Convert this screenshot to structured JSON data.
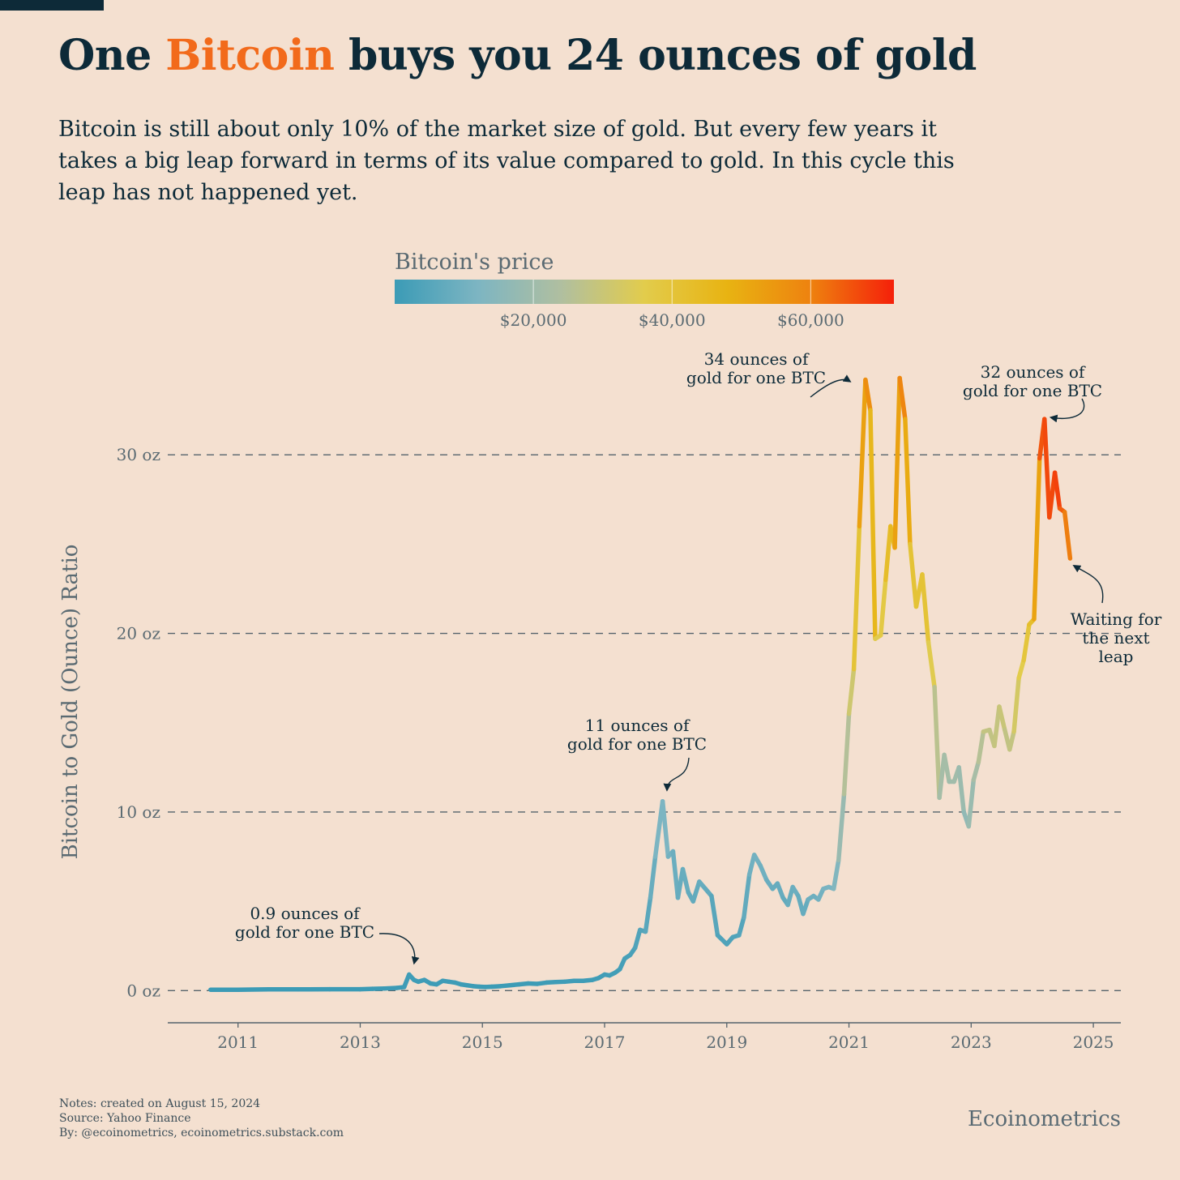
{
  "header": {
    "title_pre": "One ",
    "title_highlight": "Bitcoin",
    "title_post": " buys you 24 ounces of gold",
    "subtitle": "Bitcoin is still about only 10% of the market size of gold. But every few years it takes a big leap forward in terms of its value compared to gold. In this cycle this leap has not happened yet."
  },
  "footer": {
    "notes": "Notes: created on August 15, 2024",
    "source": "Source: Yahoo Finance",
    "by": "By: @ecoinometrics, ecoinometrics.substack.com",
    "brand": "Ecoinometrics"
  },
  "colors": {
    "background": "#f4e0d0",
    "text": "#0d2a38",
    "title_highlight": "#f26a1b",
    "axis_text": "#5a6a72",
    "gradient": [
      "#3b9bb6",
      "#7db5c2",
      "#b0bfa0",
      "#e2cc4c",
      "#e8b312",
      "#ee820f",
      "#f5200a"
    ]
  },
  "chart_data": {
    "type": "line",
    "ylabel": "Bitcoin to Gold (Ounce) Ratio",
    "ylim": [
      -1.8,
      35.5
    ],
    "xlim": [
      2009.85,
      2025.45
    ],
    "yticks": [
      0,
      10,
      20,
      30
    ],
    "ytick_labels": [
      "0 oz",
      "10 oz",
      "20 oz",
      "30 oz"
    ],
    "xticks": [
      2011,
      2013,
      2015,
      2017,
      2019,
      2021,
      2023,
      2025
    ],
    "xtick_labels": [
      "2011",
      "2013",
      "2015",
      "2017",
      "2019",
      "2021",
      "2023",
      "2025"
    ],
    "grid": "horizontal dashed",
    "colorbar": {
      "title": "Bitcoin's price",
      "range": [
        0,
        72000
      ],
      "ticks": [
        20000,
        40000,
        60000
      ],
      "tick_labels": [
        "$20,000",
        "$40,000",
        "$60,000"
      ]
    },
    "annotations": [
      {
        "lines": [
          "0.9 ounces of",
          "gold for one BTC"
        ],
        "x": 2013.8,
        "y": 0.9
      },
      {
        "lines": [
          "11 ounces of",
          "gold for one BTC"
        ],
        "x": 2017.95,
        "y": 10.6
      },
      {
        "lines": [
          "34 ounces of",
          "gold for one BTC"
        ],
        "x": 2021.15,
        "y": 34.2
      },
      {
        "lines": [
          "32 ounces of",
          "gold for one BTC"
        ],
        "x": 2024.2,
        "y": 32.0
      },
      {
        "lines": [
          "Waiting for",
          "the next",
          "leap"
        ],
        "x": 2024.55,
        "y": 24.2
      }
    ],
    "series": [
      {
        "x": [
          2010.55,
          2011.0,
          2011.5,
          2012.0,
          2012.5,
          2013.0,
          2013.2,
          2013.4,
          2013.6,
          2013.72,
          2013.8,
          2013.88,
          2013.95,
          2014.05,
          2014.15,
          2014.25,
          2014.35,
          2014.45,
          2014.55,
          2014.65,
          2014.75,
          2014.85,
          2014.95,
          2015.05,
          2015.15,
          2015.3,
          2015.45,
          2015.6,
          2015.75,
          2015.9,
          2016.05,
          2016.2,
          2016.35,
          2016.5,
          2016.65,
          2016.8,
          2016.9,
          2017.0,
          2017.08,
          2017.17,
          2017.25,
          2017.33,
          2017.42,
          2017.5,
          2017.58,
          2017.67,
          2017.75,
          2017.83,
          2017.95,
          2018.04,
          2018.12,
          2018.2,
          2018.28,
          2018.37,
          2018.45,
          2018.55,
          2018.65,
          2018.75,
          2018.85,
          2019.0,
          2019.1,
          2019.2,
          2019.28,
          2019.37,
          2019.45,
          2019.55,
          2019.65,
          2019.75,
          2019.83,
          2019.92,
          2020.0,
          2020.08,
          2020.17,
          2020.25,
          2020.33,
          2020.42,
          2020.5,
          2020.58,
          2020.67,
          2020.75,
          2020.83,
          2020.92,
          2021.0,
          2021.08,
          2021.17,
          2021.27,
          2021.35,
          2021.43,
          2021.52,
          2021.6,
          2021.68,
          2021.75,
          2021.83,
          2021.92,
          2022.0,
          2022.1,
          2022.2,
          2022.3,
          2022.4,
          2022.48,
          2022.56,
          2022.64,
          2022.72,
          2022.8,
          2022.88,
          2022.96,
          2023.04,
          2023.12,
          2023.2,
          2023.3,
          2023.38,
          2023.46,
          2023.55,
          2023.63,
          2023.7,
          2023.78,
          2023.86,
          2023.95,
          2024.03,
          2024.12,
          2024.2,
          2024.28,
          2024.37,
          2024.45,
          2024.53,
          2024.62
        ],
        "y": [
          0.05,
          0.05,
          0.07,
          0.07,
          0.08,
          0.08,
          0.1,
          0.12,
          0.15,
          0.2,
          0.9,
          0.6,
          0.5,
          0.6,
          0.4,
          0.35,
          0.55,
          0.5,
          0.45,
          0.35,
          0.3,
          0.25,
          0.22,
          0.2,
          0.22,
          0.25,
          0.3,
          0.35,
          0.4,
          0.38,
          0.45,
          0.48,
          0.5,
          0.55,
          0.55,
          0.6,
          0.7,
          0.9,
          0.85,
          1.0,
          1.2,
          1.8,
          2.0,
          2.4,
          3.4,
          3.3,
          5.2,
          7.5,
          10.6,
          7.5,
          7.8,
          5.2,
          6.8,
          5.5,
          5.0,
          6.1,
          5.7,
          5.3,
          3.1,
          2.6,
          3.0,
          3.1,
          4.1,
          6.5,
          7.6,
          7.0,
          6.2,
          5.7,
          6.0,
          5.2,
          4.8,
          5.8,
          5.3,
          4.3,
          5.1,
          5.3,
          5.1,
          5.7,
          5.8,
          5.7,
          7.3,
          11.0,
          15.5,
          18.0,
          26.0,
          34.2,
          32.5,
          19.7,
          19.9,
          23.0,
          26.0,
          24.8,
          34.3,
          32.0,
          25.0,
          21.5,
          23.3,
          19.5,
          17.0,
          10.8,
          13.2,
          11.7,
          11.7,
          12.5,
          10.0,
          9.2,
          11.8,
          12.8,
          14.5,
          14.6,
          13.7,
          15.9,
          14.6,
          13.5,
          14.5,
          17.5,
          18.5,
          20.5,
          20.8,
          29.8,
          32.0,
          26.5,
          29.0,
          27.0,
          26.8,
          24.2
        ],
        "price": [
          0,
          0,
          0,
          0,
          0,
          50,
          100,
          150,
          200,
          250,
          1100,
          800,
          650,
          800,
          500,
          450,
          650,
          600,
          550,
          420,
          380,
          330,
          280,
          250,
          250,
          280,
          300,
          350,
          420,
          380,
          430,
          500,
          650,
          700,
          650,
          700,
          800,
          1000,
          1100,
          1300,
          1500,
          2300,
          2500,
          3000,
          4500,
          4400,
          6800,
          9800,
          14000,
          10000,
          10500,
          7000,
          9000,
          7500,
          6700,
          8000,
          7500,
          6600,
          4000,
          3500,
          3900,
          4100,
          5400,
          8700,
          10500,
          10000,
          9000,
          8000,
          8500,
          7400,
          7200,
          9000,
          8500,
          6800,
          8600,
          9500,
          9200,
          11000,
          11500,
          11500,
          15000,
          22000,
          28000,
          34000,
          47000,
          58000,
          56000,
          36000,
          35000,
          40000,
          46000,
          44000,
          61000,
          57000,
          43000,
          38000,
          43000,
          38000,
          33000,
          20000,
          23000,
          20000,
          20000,
          21000,
          17000,
          16500,
          21000,
          23000,
          28000,
          29000,
          27000,
          30500,
          29000,
          27000,
          30000,
          35000,
          37000,
          42000,
          43000,
          61000,
          70000,
          64000,
          70000,
          66000,
          63000,
          58000
        ]
      }
    ]
  }
}
